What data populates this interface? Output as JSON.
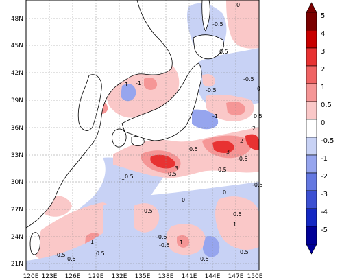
{
  "map": {
    "lon_ticks": [
      "120E",
      "123E",
      "126E",
      "129E",
      "132E",
      "135E",
      "138E",
      "141E",
      "144E",
      "147E",
      "150E"
    ],
    "lat_ticks": [
      "48N",
      "45N",
      "42N",
      "39N",
      "36N",
      "33N",
      "30N",
      "27N",
      "24N",
      "21N"
    ],
    "colorbar": {
      "labels": [
        "5",
        "4",
        "3",
        "2",
        "1",
        "0.5",
        "0",
        "-0.5",
        "-1",
        "-2",
        "-3",
        "-4",
        "-5"
      ],
      "colors": [
        "#7a0000",
        "#c80000",
        "#e83232",
        "#f06464",
        "#f59696",
        "#fac8c8",
        "#ffffff",
        "#c8d2f5",
        "#96a5ee",
        "#6478e1",
        "#3c50d2",
        "#1428c3",
        "#000096"
      ]
    },
    "contour_labels": [
      "-0.5",
      "0",
      "0.5",
      "1",
      "-1",
      "2",
      "3",
      "-0.5",
      "0.5",
      "0",
      "-0.5",
      "0.5",
      "1",
      "-0.5",
      "0.5",
      "-1",
      "0.5",
      "0",
      "0.5",
      "-0.5",
      "1",
      "3",
      "2",
      "0.5",
      "-0.5",
      "-1",
      "0.5",
      "0",
      "0.5",
      "1",
      "-0.5",
      "0.5",
      "0.5",
      "-0.5",
      "0.5"
    ]
  }
}
